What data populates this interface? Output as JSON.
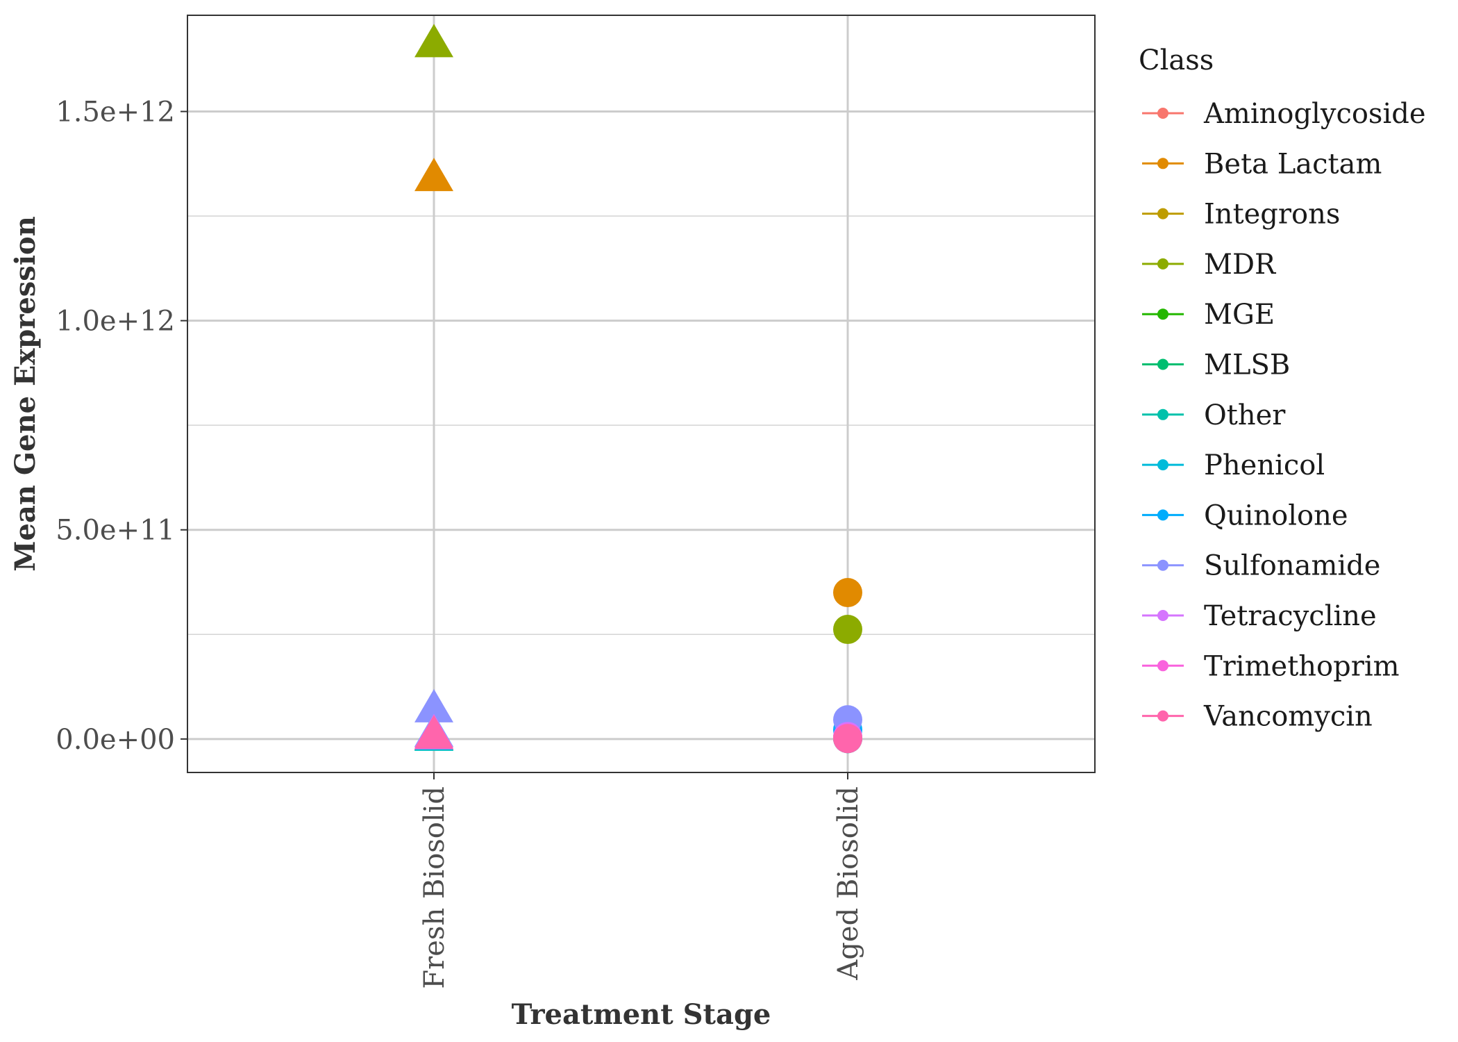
{
  "chart_data": {
    "type": "scatter",
    "xlabel": "Treatment Stage",
    "ylabel": "Mean Gene Expression",
    "categories": [
      "Fresh Biosolid",
      "Aged Biosolid"
    ],
    "ylim": [
      -80000000000.0,
      1730000000000.0
    ],
    "y_ticks": [
      0,
      500000000000.0,
      1000000000000.0,
      1500000000000.0
    ],
    "y_tick_labels": [
      "0.0e+00",
      "5.0e+11",
      "1.0e+12",
      "1.5e+12"
    ],
    "y_minor_ticks": [
      250000000000.0,
      750000000000.0,
      1250000000000.0
    ],
    "grid": true,
    "legend_title": "Class",
    "legend_position": "right",
    "marker_by_stage": {
      "Fresh Biosolid": "triangle",
      "Aged Biosolid": "circle"
    },
    "series": [
      {
        "name": "Aminoglycoside",
        "color": "#F8766D",
        "values": [
          5000000000.0,
          3000000000.0
        ]
      },
      {
        "name": "Beta Lactam",
        "color": "#E18A00",
        "values": [
          1340000000000.0,
          350000000000.0
        ]
      },
      {
        "name": "Integrons",
        "color": "#BE9C00",
        "values": [
          4000000000.0,
          2000000000.0
        ]
      },
      {
        "name": "MDR",
        "color": "#8CAB00",
        "values": [
          1660000000000.0,
          262000000000.0
        ]
      },
      {
        "name": "MGE",
        "color": "#24B700",
        "values": [
          3000000000.0,
          2000000000.0
        ]
      },
      {
        "name": "MLSB",
        "color": "#00BE70",
        "values": [
          4000000000.0,
          2000000000.0
        ]
      },
      {
        "name": "Other",
        "color": "#00C1AB",
        "values": [
          2000000000.0,
          1000000000.0
        ]
      },
      {
        "name": "Phenicol",
        "color": "#00BBDA",
        "values": [
          3000000000.0,
          1000000000.0
        ]
      },
      {
        "name": "Quinolone",
        "color": "#00ACFC",
        "values": [
          12000000000.0,
          22000000000.0
        ]
      },
      {
        "name": "Sulfonamide",
        "color": "#8B93FF",
        "values": [
          70000000000.0,
          46000000000.0
        ]
      },
      {
        "name": "Tetracycline",
        "color": "#D575FE",
        "values": [
          11000000000.0,
          6000000000.0
        ]
      },
      {
        "name": "Trimethoprim",
        "color": "#F962DD",
        "values": [
          6000000000.0,
          2000000000.0
        ]
      },
      {
        "name": "Vancomycin",
        "color": "#FF65AC",
        "values": [
          8000000000.0,
          1000000000.0
        ]
      }
    ]
  }
}
